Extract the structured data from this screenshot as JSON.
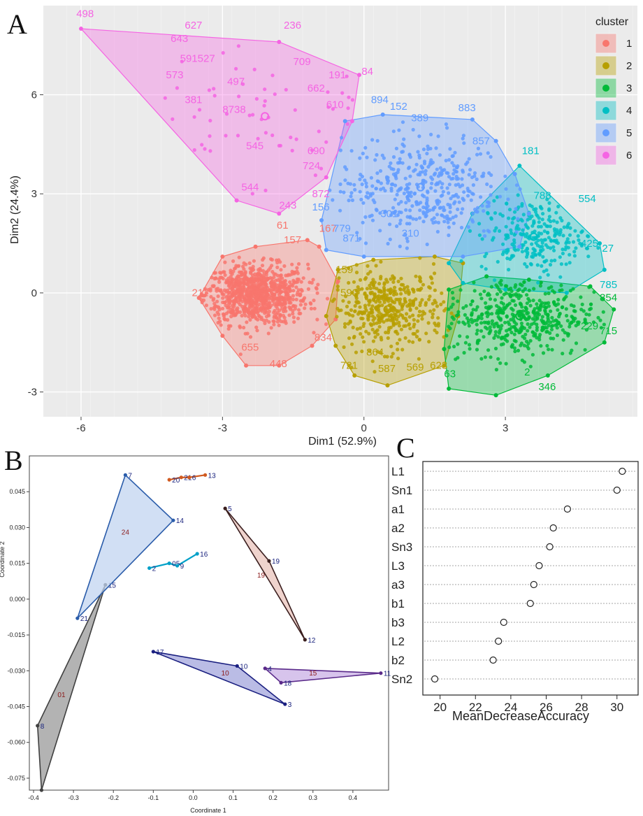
{
  "panels": {
    "a": "A",
    "b": "B",
    "c": "C"
  },
  "chart_data": [
    {
      "id": "A",
      "type": "scatter",
      "xlabel": "Dim1 (52.9%)",
      "ylabel": "Dim2 (24.4%)",
      "xlim": [
        -6.8,
        5.8
      ],
      "ylim": [
        -3.75,
        8.7
      ],
      "xticks": [
        -6,
        -3,
        0,
        3
      ],
      "yticks": [
        -3,
        0,
        3,
        6
      ],
      "grid": true,
      "background": "#ebebeb",
      "legend": {
        "title": "cluster",
        "position": "right"
      },
      "clusters": [
        {
          "name": "1",
          "color": "#f8766d",
          "hull": [
            [
              -3.5,
              -0.15
            ],
            [
              -3.0,
              1.1
            ],
            [
              -2.3,
              1.4
            ],
            [
              -1.2,
              1.6
            ],
            [
              -0.95,
              1.4
            ],
            [
              -0.55,
              0.35
            ],
            [
              -0.6,
              -0.8
            ],
            [
              -1.1,
              -1.6
            ],
            [
              -1.8,
              -2.2
            ],
            [
              -2.5,
              -2.2
            ],
            [
              -3.0,
              -1.3
            ]
          ],
          "centroid": [
            -2.3,
            -0.05
          ],
          "labels": [
            {
              "t": "211",
              "x": -3.65,
              "y": -0.1
            },
            {
              "t": "655",
              "x": -2.6,
              "y": -1.75
            },
            {
              "t": "448",
              "x": -2.0,
              "y": -2.25
            },
            {
              "t": "61",
              "x": -1.85,
              "y": 1.95
            },
            {
              "t": "157",
              "x": -1.7,
              "y": 1.5
            },
            {
              "t": "167",
              "x": -0.95,
              "y": 1.85
            },
            {
              "t": "834",
              "x": -1.05,
              "y": -1.45
            }
          ]
        },
        {
          "name": "2",
          "color": "#b79f00",
          "hull": [
            [
              -0.8,
              -0.7
            ],
            [
              -0.55,
              0.7
            ],
            [
              0.2,
              1.0
            ],
            [
              1.5,
              1.1
            ],
            [
              2.1,
              0.9
            ],
            [
              2.0,
              -0.7
            ],
            [
              1.7,
              -2.2
            ],
            [
              0.5,
              -2.8
            ],
            [
              -0.2,
              -2.5
            ],
            [
              -0.6,
              -1.6
            ]
          ],
          "centroid": [
            0.5,
            -0.5
          ],
          "labels": [
            {
              "t": "159",
              "x": -0.6,
              "y": 0.6
            },
            {
              "t": "590",
              "x": -0.5,
              "y": -0.1
            },
            {
              "t": "721",
              "x": -0.5,
              "y": -2.3
            },
            {
              "t": "587",
              "x": 0.3,
              "y": -2.4
            },
            {
              "t": "569",
              "x": 0.9,
              "y": -2.35
            },
            {
              "t": "623",
              "x": 1.4,
              "y": -2.3
            },
            {
              "t": "864",
              "x": 0.05,
              "y": -1.9
            }
          ]
        },
        {
          "name": "3",
          "color": "#00ba38",
          "hull": [
            [
              1.7,
              -1.7
            ],
            [
              1.8,
              0.1
            ],
            [
              2.6,
              0.5
            ],
            [
              3.5,
              0.4
            ],
            [
              4.8,
              0.2
            ],
            [
              5.3,
              -0.5
            ],
            [
              5.1,
              -1.5
            ],
            [
              3.9,
              -2.5
            ],
            [
              2.8,
              -3.1
            ],
            [
              1.8,
              -2.9
            ]
          ],
          "centroid": [
            3.3,
            -0.7
          ],
          "labels": [
            {
              "t": "346",
              "x": 3.7,
              "y": -2.95
            },
            {
              "t": "63",
              "x": 1.7,
              "y": -2.55
            },
            {
              "t": "715",
              "x": 5.0,
              "y": -1.25
            },
            {
              "t": "229",
              "x": 4.6,
              "y": -1.1
            },
            {
              "t": "854",
              "x": 5.0,
              "y": -0.25
            },
            {
              "t": "2",
              "x": 3.4,
              "y": -2.5
            }
          ]
        },
        {
          "name": "4",
          "color": "#00bfc4",
          "hull": [
            [
              1.8,
              0.9
            ],
            [
              2.3,
              2.4
            ],
            [
              3.3,
              3.85
            ],
            [
              5.0,
              1.5
            ],
            [
              5.1,
              0.7
            ],
            [
              4.3,
              0.0
            ],
            [
              3.0,
              0.1
            ],
            [
              2.1,
              0.3
            ]
          ],
          "centroid": [
            3.6,
            1.7
          ],
          "labels": [
            {
              "t": "181",
              "x": 3.35,
              "y": 4.2
            },
            {
              "t": "788",
              "x": 3.6,
              "y": 2.85
            },
            {
              "t": "554",
              "x": 4.55,
              "y": 2.75
            },
            {
              "t": "27",
              "x": 5.05,
              "y": 1.25
            },
            {
              "t": "785",
              "x": 5.0,
              "y": 0.15
            },
            {
              "t": "425",
              "x": 4.6,
              "y": 1.4
            }
          ]
        },
        {
          "name": "5",
          "color": "#619cff",
          "hull": [
            [
              -0.9,
              2.2
            ],
            [
              -0.4,
              5.2
            ],
            [
              0.4,
              5.4
            ],
            [
              2.3,
              5.25
            ],
            [
              2.8,
              4.6
            ],
            [
              3.2,
              3.6
            ],
            [
              3.5,
              2.4
            ],
            [
              3.3,
              1.4
            ],
            [
              2.1,
              1.1
            ],
            [
              0.0,
              1.1
            ],
            [
              -0.8,
              1.3
            ]
          ],
          "centroid": [
            1.2,
            3.2
          ],
          "labels": [
            {
              "t": "894",
              "x": 0.15,
              "y": 5.75
            },
            {
              "t": "152",
              "x": 0.55,
              "y": 5.55
            },
            {
              "t": "389",
              "x": 1.0,
              "y": 5.2
            },
            {
              "t": "883",
              "x": 2.0,
              "y": 5.5
            },
            {
              "t": "857",
              "x": 2.3,
              "y": 4.5
            },
            {
              "t": "156",
              "x": -1.1,
              "y": 2.5
            },
            {
              "t": "871",
              "x": -0.45,
              "y": 1.55
            },
            {
              "t": "779",
              "x": -0.65,
              "y": 1.85
            },
            {
              "t": "301",
              "x": 0.35,
              "y": 2.3
            },
            {
              "t": "310",
              "x": 0.8,
              "y": 1.7
            }
          ]
        },
        {
          "name": "6",
          "color": "#f564e3",
          "hull": [
            [
              -6.0,
              8.0
            ],
            [
              -1.8,
              7.6
            ],
            [
              -0.1,
              6.6
            ],
            [
              -0.25,
              5.2
            ],
            [
              -0.8,
              3.5
            ],
            [
              -1.8,
              2.4
            ],
            [
              -2.7,
              2.8
            ]
          ],
          "centroid": [
            -2.1,
            5.35
          ],
          "labels": [
            {
              "t": "498",
              "x": -6.1,
              "y": 8.35
            },
            {
              "t": "627",
              "x": -3.8,
              "y": 8.0
            },
            {
              "t": "236",
              "x": -1.7,
              "y": 8.0
            },
            {
              "t": "643",
              "x": -4.1,
              "y": 7.6
            },
            {
              "t": "591527",
              "x": -3.9,
              "y": 7.0
            },
            {
              "t": "709",
              "x": -1.5,
              "y": 6.9
            },
            {
              "t": "84",
              "x": -0.05,
              "y": 6.6
            },
            {
              "t": "191",
              "x": -0.75,
              "y": 6.5
            },
            {
              "t": "662",
              "x": -1.2,
              "y": 6.1
            },
            {
              "t": "573",
              "x": -4.2,
              "y": 6.5
            },
            {
              "t": "497",
              "x": -2.9,
              "y": 6.3
            },
            {
              "t": "381",
              "x": -3.8,
              "y": 5.75
            },
            {
              "t": "8738",
              "x": -3.0,
              "y": 5.45
            },
            {
              "t": "610",
              "x": -0.8,
              "y": 5.6
            },
            {
              "t": "545",
              "x": -2.5,
              "y": 4.35
            },
            {
              "t": "724",
              "x": -1.3,
              "y": 3.75
            },
            {
              "t": "872",
              "x": -1.1,
              "y": 2.9
            },
            {
              "t": "544",
              "x": -2.6,
              "y": 3.1
            },
            {
              "t": "243",
              "x": -1.8,
              "y": 2.55
            },
            {
              "t": "690",
              "x": -1.2,
              "y": 4.2
            }
          ]
        }
      ]
    },
    {
      "id": "B",
      "type": "scatter",
      "xlabel": "Coordinate 1",
      "ylabel": "Coordinate 2",
      "xlim": [
        -0.4,
        0.5
      ],
      "ylim": [
        -0.08,
        0.06
      ],
      "xticks": [
        "-0.4",
        "-0.3",
        "-0.2",
        "-0.1",
        "0.0",
        "0.1",
        "0.2",
        "0.3",
        "0.4"
      ],
      "yticks": [
        "0.045",
        "0.030",
        "0.015",
        "0.000",
        "-0.015",
        "-0.030",
        "-0.045",
        "-0.060",
        "-0.075"
      ],
      "groups": [
        {
          "name": "01",
          "color": "#404040",
          "fill": "#999999",
          "points": [
            {
              "id": "8",
              "x": -0.39,
              "y": -0.053
            },
            {
              "id": "15",
              "x": -0.22,
              "y": 0.006
            },
            {
              "id": "",
              "x": -0.38,
              "y": -0.08
            }
          ],
          "label_pos": [
            -0.33,
            -0.041
          ]
        },
        {
          "name": "24",
          "color": "#2a5caa",
          "fill": "#c2d4f0",
          "points": [
            {
              "id": "7",
              "x": -0.17,
              "y": 0.052
            },
            {
              "id": "14",
              "x": -0.05,
              "y": 0.033
            },
            {
              "id": "21",
              "x": -0.29,
              "y": -0.008
            }
          ],
          "label_pos": [
            -0.17,
            0.027
          ]
        },
        {
          "name": "",
          "color": "#00a0c8",
          "fill": "#00a0c8",
          "points": [
            {
              "id": "2",
              "x": -0.11,
              "y": 0.013
            },
            {
              "id": "05",
              "x": -0.06,
              "y": 0.015
            },
            {
              "id": "9",
              "x": -0.04,
              "y": 0.014
            },
            {
              "id": "16",
              "x": 0.01,
              "y": 0.019
            }
          ],
          "label_pos": null
        },
        {
          "name": "",
          "color": "#d05a20",
          "fill": "#d05a20",
          "points": [
            {
              "id": "20",
              "x": -0.06,
              "y": 0.05
            },
            {
              "id": "21",
              "x": -0.03,
              "y": 0.051
            },
            {
              "id": "6",
              "x": -0.01,
              "y": 0.051
            },
            {
              "id": "13",
              "x": 0.03,
              "y": 0.052
            }
          ],
          "label_pos": null
        },
        {
          "name": "19",
          "color": "#3a1e1e",
          "fill": "#e9c4bc",
          "points": [
            {
              "id": "5",
              "x": 0.08,
              "y": 0.038
            },
            {
              "id": "19",
              "x": 0.19,
              "y": 0.016
            },
            {
              "id": "12",
              "x": 0.28,
              "y": -0.017
            }
          ],
          "label_pos": [
            0.17,
            0.009
          ]
        },
        {
          "name": "10",
          "color": "#1a1f80",
          "fill": "#a3a6dc",
          "points": [
            {
              "id": "17",
              "x": -0.1,
              "y": -0.022
            },
            {
              "id": "10",
              "x": 0.11,
              "y": -0.028
            },
            {
              "id": "3",
              "x": 0.23,
              "y": -0.044
            }
          ],
          "label_pos": [
            0.08,
            -0.032
          ]
        },
        {
          "name": "15",
          "color": "#5a2a8a",
          "fill": "#c9b0e6",
          "points": [
            {
              "id": "4",
              "x": 0.18,
              "y": -0.029
            },
            {
              "id": "18",
              "x": 0.22,
              "y": -0.035
            },
            {
              "id": "11",
              "x": 0.47,
              "y": -0.031
            }
          ],
          "label_pos": [
            0.3,
            -0.032
          ]
        }
      ]
    },
    {
      "id": "C",
      "type": "dot",
      "xlabel": "MeanDecreaseAccuracy",
      "xlim": [
        19.5,
        30.8
      ],
      "xticks": [
        20,
        22,
        24,
        26,
        28,
        30
      ],
      "categories": [
        "L1",
        "Sn1",
        "a1",
        "a2",
        "Sn3",
        "L3",
        "a3",
        "b1",
        "b3",
        "L2",
        "b2",
        "Sn2"
      ],
      "values": [
        30.3,
        30.0,
        27.2,
        26.4,
        26.2,
        25.6,
        25.3,
        25.1,
        23.6,
        23.3,
        23.0,
        19.7
      ]
    }
  ]
}
